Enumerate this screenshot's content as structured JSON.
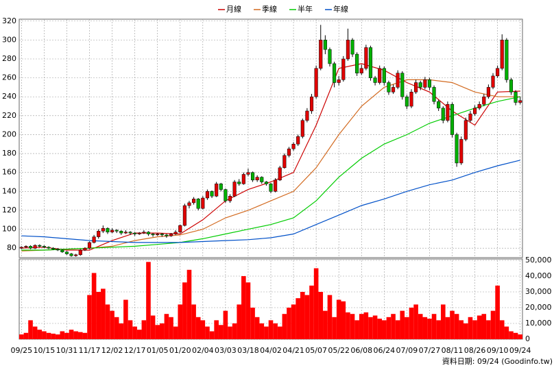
{
  "chart_data": {
    "type": "candlestick",
    "legend": "top",
    "grid": true,
    "categories": [
      "09/25",
      null,
      null,
      null,
      null,
      "10/15",
      null,
      null,
      null,
      null,
      "10/31",
      null,
      null,
      null,
      null,
      "11/17",
      null,
      null,
      null,
      null,
      "12/02",
      null,
      null,
      null,
      null,
      "12/17",
      null,
      null,
      null,
      null,
      "01/05",
      null,
      null,
      null,
      null,
      "01/20",
      null,
      null,
      null,
      null,
      "02/04",
      null,
      null,
      null,
      null,
      "03/03",
      null,
      null,
      null,
      null,
      "03/18",
      null,
      null,
      null,
      null,
      "04/02",
      null,
      null,
      null,
      null,
      "04/21",
      null,
      null,
      null,
      null,
      "05/07",
      null,
      null,
      null,
      null,
      "05/22",
      null,
      null,
      null,
      null,
      "06/08",
      null,
      null,
      null,
      null,
      "06/24",
      null,
      null,
      null,
      null,
      "07/09",
      null,
      null,
      null,
      null,
      "07/27",
      null,
      null,
      null,
      null,
      "08/11",
      null,
      null,
      null,
      null,
      "08/26",
      null,
      null,
      null,
      null,
      "09/10",
      null,
      null,
      null,
      null,
      "09/24"
    ],
    "up_color": "#e00000",
    "down_color": "#00b000",
    "ohlc": [
      [
        80,
        82,
        79,
        81
      ],
      [
        81,
        83,
        80,
        82
      ],
      [
        82,
        83,
        79,
        80
      ],
      [
        80,
        84,
        79,
        83
      ],
      [
        83,
        84,
        81,
        82
      ],
      [
        82,
        83,
        80,
        81
      ],
      [
        81,
        82,
        79,
        80
      ],
      [
        80,
        81,
        78,
        79
      ],
      [
        79,
        80,
        77,
        78
      ],
      [
        78,
        79,
        75,
        76
      ],
      [
        76,
        77,
        73,
        74
      ],
      [
        74,
        75,
        71,
        72
      ],
      [
        72,
        74,
        71,
        73
      ],
      [
        73,
        79,
        72,
        78
      ],
      [
        78,
        81,
        77,
        80
      ],
      [
        80,
        87,
        79,
        86
      ],
      [
        86,
        94,
        85,
        92
      ],
      [
        92,
        100,
        90,
        98
      ],
      [
        98,
        104,
        96,
        101
      ],
      [
        101,
        102,
        95,
        97
      ],
      [
        97,
        101,
        96,
        99
      ],
      [
        99,
        100,
        96,
        98
      ],
      [
        98,
        99,
        94,
        96
      ],
      [
        96,
        99,
        95,
        97
      ],
      [
        97,
        98,
        94,
        96
      ],
      [
        96,
        97,
        93,
        95
      ],
      [
        95,
        97,
        94,
        96
      ],
      [
        96,
        99,
        95,
        97
      ],
      [
        97,
        98,
        93,
        95
      ],
      [
        95,
        96,
        92,
        94
      ],
      [
        94,
        96,
        93,
        95
      ],
      [
        95,
        96,
        92,
        94
      ],
      [
        94,
        95,
        91,
        93
      ],
      [
        93,
        96,
        92,
        95
      ],
      [
        95,
        99,
        94,
        97
      ],
      [
        97,
        105,
        96,
        104
      ],
      [
        104,
        127,
        103,
        125
      ],
      [
        125,
        130,
        122,
        128
      ],
      [
        128,
        134,
        126,
        132
      ],
      [
        132,
        133,
        120,
        122
      ],
      [
        122,
        135,
        121,
        133
      ],
      [
        133,
        142,
        131,
        140
      ],
      [
        140,
        141,
        133,
        135
      ],
      [
        135,
        150,
        134,
        148
      ],
      [
        148,
        149,
        140,
        142
      ],
      [
        142,
        143,
        128,
        130
      ],
      [
        130,
        137,
        128,
        135
      ],
      [
        135,
        152,
        134,
        150
      ],
      [
        150,
        153,
        146,
        148
      ],
      [
        148,
        160,
        147,
        158
      ],
      [
        158,
        164,
        156,
        160
      ],
      [
        160,
        161,
        150,
        152
      ],
      [
        152,
        157,
        150,
        155
      ],
      [
        155,
        156,
        148,
        150
      ],
      [
        150,
        151,
        146,
        148
      ],
      [
        148,
        149,
        138,
        140
      ],
      [
        140,
        154,
        139,
        152
      ],
      [
        152,
        167,
        151,
        165
      ],
      [
        165,
        180,
        164,
        178
      ],
      [
        178,
        187,
        176,
        185
      ],
      [
        185,
        192,
        183,
        190
      ],
      [
        190,
        200,
        188,
        198
      ],
      [
        198,
        217,
        196,
        215
      ],
      [
        215,
        228,
        213,
        225
      ],
      [
        225,
        243,
        222,
        240
      ],
      [
        240,
        273,
        238,
        270
      ],
      [
        270,
        316,
        268,
        300
      ],
      [
        300,
        305,
        285,
        290
      ],
      [
        290,
        292,
        272,
        275
      ],
      [
        275,
        277,
        250,
        255
      ],
      [
        255,
        262,
        252,
        258
      ],
      [
        258,
        283,
        256,
        280
      ],
      [
        280,
        312,
        278,
        300
      ],
      [
        300,
        302,
        282,
        285
      ],
      [
        285,
        287,
        262,
        265
      ],
      [
        265,
        274,
        263,
        270
      ],
      [
        270,
        295,
        268,
        292
      ],
      [
        292,
        294,
        257,
        260
      ],
      [
        260,
        262,
        252,
        255
      ],
      [
        255,
        273,
        253,
        270
      ],
      [
        270,
        272,
        252,
        255
      ],
      [
        255,
        257,
        242,
        245
      ],
      [
        245,
        253,
        243,
        250
      ],
      [
        250,
        268,
        248,
        265
      ],
      [
        265,
        267,
        237,
        240
      ],
      [
        240,
        242,
        227,
        230
      ],
      [
        230,
        248,
        228,
        245
      ],
      [
        245,
        258,
        243,
        255
      ],
      [
        255,
        257,
        247,
        250
      ],
      [
        250,
        261,
        248,
        258
      ],
      [
        258,
        260,
        247,
        250
      ],
      [
        250,
        252,
        232,
        235
      ],
      [
        235,
        237,
        225,
        228
      ],
      [
        228,
        230,
        212,
        215
      ],
      [
        215,
        235,
        213,
        232
      ],
      [
        232,
        234,
        197,
        200
      ],
      [
        200,
        202,
        166,
        170
      ],
      [
        170,
        198,
        168,
        195
      ],
      [
        195,
        218,
        193,
        215
      ],
      [
        215,
        225,
        213,
        222
      ],
      [
        222,
        231,
        220,
        228
      ],
      [
        228,
        235,
        226,
        232
      ],
      [
        232,
        243,
        230,
        240
      ],
      [
        240,
        253,
        238,
        250
      ],
      [
        250,
        265,
        248,
        262
      ],
      [
        262,
        273,
        260,
        270
      ],
      [
        270,
        306,
        268,
        300
      ],
      [
        300,
        302,
        255,
        258
      ],
      [
        258,
        260,
        242,
        245
      ],
      [
        245,
        247,
        231,
        234
      ],
      [
        234,
        240,
        232,
        236
      ]
    ],
    "ylim": [
      70,
      322
    ],
    "yticks": [
      80,
      100,
      120,
      140,
      160,
      180,
      200,
      220,
      240,
      260,
      280,
      300,
      320
    ],
    "series": [
      {
        "name": "月線",
        "color": "#cc0000",
        "x": [
          0,
          5,
          10,
          15,
          20,
          25,
          30,
          35,
          40,
          45,
          50,
          55,
          60,
          65,
          70,
          75,
          80,
          85,
          90,
          95,
          100,
          105,
          110
        ],
        "values": [
          80,
          81,
          78,
          78,
          88,
          96,
          96,
          95,
          110,
          130,
          142,
          150,
          160,
          210,
          270,
          275,
          268,
          255,
          245,
          225,
          210,
          245,
          246
        ]
      },
      {
        "name": "季線",
        "color": "#d2691e",
        "x": [
          0,
          5,
          10,
          15,
          20,
          25,
          30,
          35,
          40,
          45,
          50,
          55,
          60,
          65,
          70,
          75,
          80,
          85,
          90,
          95,
          100,
          105,
          110
        ],
        "values": [
          77,
          78,
          79,
          80,
          82,
          88,
          92,
          94,
          100,
          112,
          120,
          130,
          140,
          165,
          200,
          230,
          250,
          258,
          258,
          255,
          245,
          240,
          240
        ]
      },
      {
        "name": "半年",
        "color": "#00cc00",
        "x": [
          0,
          5,
          10,
          15,
          20,
          25,
          30,
          35,
          40,
          45,
          50,
          55,
          60,
          65,
          70,
          75,
          80,
          85,
          90,
          95,
          100,
          105,
          110
        ],
        "values": [
          78,
          78,
          79,
          80,
          81,
          82,
          84,
          86,
          90,
          95,
          100,
          105,
          112,
          130,
          155,
          175,
          190,
          200,
          212,
          220,
          228,
          235,
          240
        ]
      },
      {
        "name": "年線",
        "color": "#0050c8",
        "x": [
          0,
          5,
          10,
          15,
          20,
          25,
          30,
          35,
          40,
          45,
          50,
          55,
          60,
          65,
          70,
          75,
          80,
          85,
          90,
          95,
          100,
          105,
          110
        ],
        "values": [
          93,
          92,
          90,
          88,
          87,
          86,
          86,
          86,
          87,
          88,
          89,
          91,
          95,
          105,
          115,
          125,
          132,
          140,
          147,
          152,
          160,
          167,
          173
        ]
      }
    ],
    "volume": {
      "color": "#ff0000",
      "ylim": [
        0,
        50000
      ],
      "yticks": [
        0,
        {
          "value": 10000,
          "label": "10,000"
        },
        {
          "value": 20000,
          "label": "20,000"
        },
        {
          "value": 30000,
          "label": "30,000"
        },
        {
          "value": 40000,
          "label": "40,000"
        },
        {
          "value": 50000,
          "label": "50,000"
        }
      ],
      "values": [
        3000,
        4000,
        12000,
        8000,
        6000,
        5000,
        4000,
        3500,
        3000,
        5000,
        4000,
        6000,
        5000,
        4500,
        4000,
        28000,
        42000,
        30000,
        32000,
        22000,
        18000,
        14000,
        10000,
        25000,
        12000,
        8000,
        6000,
        12000,
        49000,
        15000,
        9000,
        10000,
        16000,
        14000,
        8000,
        22000,
        36000,
        44000,
        22000,
        14000,
        12000,
        8000,
        5000,
        12000,
        9000,
        18000,
        8000,
        10000,
        22000,
        40000,
        36000,
        20000,
        14000,
        10000,
        8000,
        12000,
        10000,
        8000,
        16000,
        20000,
        22000,
        26000,
        30000,
        28000,
        34000,
        45000,
        30000,
        18000,
        28000,
        14000,
        25000,
        24000,
        17000,
        16000,
        12000,
        16000,
        17000,
        14000,
        15000,
        13000,
        12000,
        14000,
        16000,
        12000,
        18000,
        14000,
        20000,
        22000,
        16000,
        14000,
        13000,
        16000,
        12000,
        22000,
        14000,
        18000,
        16000,
        12000,
        10000,
        14000,
        12000,
        15000,
        16000,
        12000,
        18000,
        34000,
        12000,
        8000,
        5000,
        4000,
        3000
      ]
    },
    "source": "資料日期: 09/24  (Goodinfo.tw)"
  }
}
